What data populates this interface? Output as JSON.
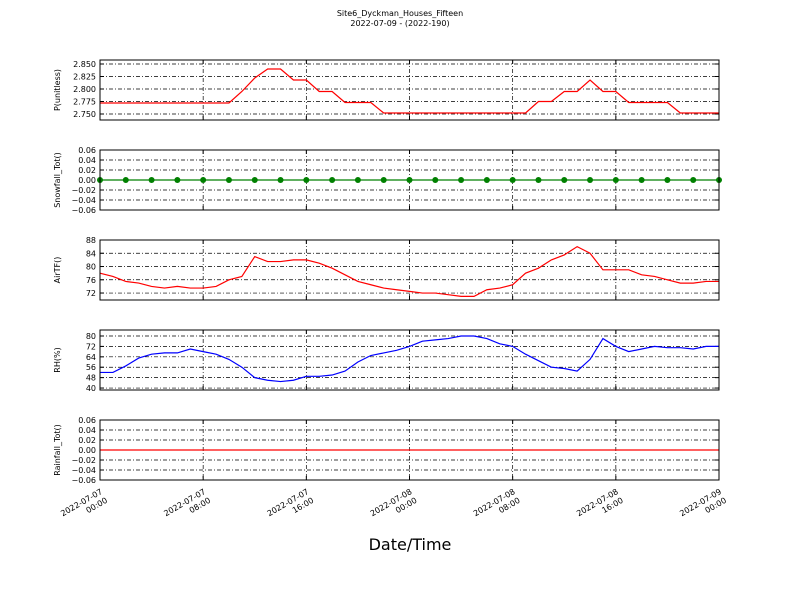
{
  "chart_data": [
    {
      "type": "line",
      "title": "Site6_Dyckman_Houses_Fifteen",
      "subtitle": "2022-07-09 - (2022-190)",
      "ylabel": "P(unitless)",
      "color": "#ff0000",
      "marker": false,
      "grid": true,
      "x": [
        "2022-07-07 00:00",
        "2022-07-07 01:00",
        "2022-07-07 02:00",
        "2022-07-07 03:00",
        "2022-07-07 04:00",
        "2022-07-07 05:00",
        "2022-07-07 06:00",
        "2022-07-07 07:00",
        "2022-07-07 08:00",
        "2022-07-07 09:00",
        "2022-07-07 10:00",
        "2022-07-07 11:00",
        "2022-07-07 12:00",
        "2022-07-07 13:00",
        "2022-07-07 14:00",
        "2022-07-07 15:00",
        "2022-07-07 16:00",
        "2022-07-07 17:00",
        "2022-07-07 18:00",
        "2022-07-07 19:00",
        "2022-07-07 20:00",
        "2022-07-07 21:00",
        "2022-07-07 22:00",
        "2022-07-07 23:00",
        "2022-07-08 00:00",
        "2022-07-08 01:00",
        "2022-07-08 02:00",
        "2022-07-08 03:00",
        "2022-07-08 04:00",
        "2022-07-08 05:00",
        "2022-07-08 06:00",
        "2022-07-08 07:00",
        "2022-07-08 08:00",
        "2022-07-08 09:00",
        "2022-07-08 10:00",
        "2022-07-08 11:00",
        "2022-07-08 12:00",
        "2022-07-08 13:00",
        "2022-07-08 14:00",
        "2022-07-08 15:00",
        "2022-07-08 16:00",
        "2022-07-08 17:00",
        "2022-07-08 18:00",
        "2022-07-08 19:00",
        "2022-07-08 20:00",
        "2022-07-08 21:00",
        "2022-07-08 22:00",
        "2022-07-08 23:00",
        "2022-07-09 00:00"
      ],
      "values": [
        2.772,
        2.772,
        2.772,
        2.772,
        2.772,
        2.772,
        2.772,
        2.772,
        2.772,
        2.772,
        2.772,
        2.795,
        2.822,
        2.84,
        2.84,
        2.818,
        2.818,
        2.795,
        2.795,
        2.773,
        2.773,
        2.773,
        2.752,
        2.752,
        2.752,
        2.752,
        2.752,
        2.752,
        2.752,
        2.752,
        2.752,
        2.752,
        2.752,
        2.752,
        2.775,
        2.775,
        2.795,
        2.795,
        2.818,
        2.795,
        2.795,
        2.773,
        2.773,
        2.773,
        2.773,
        2.752,
        2.752,
        2.752,
        2.752
      ],
      "xlim": [
        "2022-07-07 00:00",
        "2022-07-09 00:00"
      ],
      "xticks": [
        "2022-07-07 00:00",
        "2022-07-07 08:00",
        "2022-07-07 16:00",
        "2022-07-08 00:00",
        "2022-07-08 08:00",
        "2022-07-08 16:00",
        "2022-07-09 00:00"
      ],
      "ylim": [
        2.738,
        2.858
      ],
      "yticks": [
        {
          "value": 2.75,
          "label": "2.750"
        },
        {
          "value": 2.775,
          "label": "2.775"
        },
        {
          "value": 2.8,
          "label": "2.800"
        },
        {
          "value": 2.825,
          "label": "2.825"
        },
        {
          "value": 2.85,
          "label": "2.850"
        }
      ]
    },
    {
      "type": "line",
      "ylabel": "Snowfall_Tot()",
      "color": "#008000",
      "marker": true,
      "grid": true,
      "x": [
        "2022-07-07 00:00",
        "2022-07-07 02:00",
        "2022-07-07 04:00",
        "2022-07-07 06:00",
        "2022-07-07 08:00",
        "2022-07-07 10:00",
        "2022-07-07 12:00",
        "2022-07-07 14:00",
        "2022-07-07 16:00",
        "2022-07-07 18:00",
        "2022-07-07 20:00",
        "2022-07-07 22:00",
        "2022-07-08 00:00",
        "2022-07-08 02:00",
        "2022-07-08 04:00",
        "2022-07-08 06:00",
        "2022-07-08 08:00",
        "2022-07-08 10:00",
        "2022-07-08 12:00",
        "2022-07-08 14:00",
        "2022-07-08 16:00",
        "2022-07-08 18:00",
        "2022-07-08 20:00",
        "2022-07-08 22:00",
        "2022-07-09 00:00"
      ],
      "values": [
        0,
        0,
        0,
        0,
        0,
        0,
        0,
        0,
        0,
        0,
        0,
        0,
        0,
        0,
        0,
        0,
        0,
        0,
        0,
        0,
        0,
        0,
        0,
        0,
        0
      ],
      "xlim": [
        "2022-07-07 00:00",
        "2022-07-09 00:00"
      ],
      "xticks": [
        "2022-07-07 00:00",
        "2022-07-07 08:00",
        "2022-07-07 16:00",
        "2022-07-08 00:00",
        "2022-07-08 08:00",
        "2022-07-08 16:00",
        "2022-07-09 00:00"
      ],
      "ylim": [
        -0.06,
        0.06
      ],
      "yticks": [
        {
          "value": -0.06,
          "label": "−0.06"
        },
        {
          "value": -0.04,
          "label": "−0.04"
        },
        {
          "value": -0.02,
          "label": "−0.02"
        },
        {
          "value": 0,
          "label": "0.00"
        },
        {
          "value": 0.02,
          "label": "0.02"
        },
        {
          "value": 0.04,
          "label": "0.04"
        },
        {
          "value": 0.06,
          "label": "0.06"
        }
      ]
    },
    {
      "type": "line",
      "ylabel": "AirTF()",
      "color": "#ff0000",
      "marker": false,
      "grid": true,
      "x": [
        "2022-07-07 00:00",
        "2022-07-07 01:00",
        "2022-07-07 02:00",
        "2022-07-07 03:00",
        "2022-07-07 04:00",
        "2022-07-07 05:00",
        "2022-07-07 06:00",
        "2022-07-07 07:00",
        "2022-07-07 08:00",
        "2022-07-07 09:00",
        "2022-07-07 10:00",
        "2022-07-07 11:00",
        "2022-07-07 12:00",
        "2022-07-07 13:00",
        "2022-07-07 14:00",
        "2022-07-07 15:00",
        "2022-07-07 16:00",
        "2022-07-07 17:00",
        "2022-07-07 18:00",
        "2022-07-07 19:00",
        "2022-07-07 20:00",
        "2022-07-07 21:00",
        "2022-07-07 22:00",
        "2022-07-07 23:00",
        "2022-07-08 00:00",
        "2022-07-08 01:00",
        "2022-07-08 02:00",
        "2022-07-08 03:00",
        "2022-07-08 04:00",
        "2022-07-08 05:00",
        "2022-07-08 06:00",
        "2022-07-08 07:00",
        "2022-07-08 08:00",
        "2022-07-08 09:00",
        "2022-07-08 10:00",
        "2022-07-08 11:00",
        "2022-07-08 12:00",
        "2022-07-08 13:00",
        "2022-07-08 14:00",
        "2022-07-08 15:00",
        "2022-07-08 16:00",
        "2022-07-08 17:00",
        "2022-07-08 18:00",
        "2022-07-08 19:00",
        "2022-07-08 20:00",
        "2022-07-08 21:00",
        "2022-07-08 22:00",
        "2022-07-08 23:00",
        "2022-07-09 00:00"
      ],
      "values": [
        78,
        77,
        75.5,
        75,
        74,
        73.5,
        74,
        73.5,
        73.5,
        74,
        76,
        77,
        83,
        81.5,
        81.5,
        82,
        82,
        81,
        79.5,
        77.5,
        75.5,
        74.5,
        73.5,
        73,
        72.5,
        72,
        72,
        71.5,
        71,
        71,
        73,
        73.5,
        74.5,
        78,
        79.5,
        82,
        83.5,
        86,
        84,
        79,
        79,
        79,
        77.5,
        77,
        76,
        75,
        75,
        75.5,
        75.5
      ],
      "xlim": [
        "2022-07-07 00:00",
        "2022-07-09 00:00"
      ],
      "xticks": [
        "2022-07-07 00:00",
        "2022-07-07 08:00",
        "2022-07-07 16:00",
        "2022-07-08 00:00",
        "2022-07-08 08:00",
        "2022-07-08 16:00",
        "2022-07-09 00:00"
      ],
      "ylim": [
        69.9,
        88
      ],
      "yticks": [
        72,
        76,
        80,
        84,
        88
      ]
    },
    {
      "type": "line",
      "ylabel": "RH(%)",
      "color": "#0000ff",
      "marker": false,
      "grid": true,
      "x": [
        "2022-07-07 00:00",
        "2022-07-07 01:00",
        "2022-07-07 02:00",
        "2022-07-07 03:00",
        "2022-07-07 04:00",
        "2022-07-07 05:00",
        "2022-07-07 06:00",
        "2022-07-07 07:00",
        "2022-07-07 08:00",
        "2022-07-07 09:00",
        "2022-07-07 10:00",
        "2022-07-07 11:00",
        "2022-07-07 12:00",
        "2022-07-07 13:00",
        "2022-07-07 14:00",
        "2022-07-07 15:00",
        "2022-07-07 16:00",
        "2022-07-07 17:00",
        "2022-07-07 18:00",
        "2022-07-07 19:00",
        "2022-07-07 20:00",
        "2022-07-07 21:00",
        "2022-07-07 22:00",
        "2022-07-07 23:00",
        "2022-07-08 00:00",
        "2022-07-08 01:00",
        "2022-07-08 02:00",
        "2022-07-08 03:00",
        "2022-07-08 04:00",
        "2022-07-08 05:00",
        "2022-07-08 06:00",
        "2022-07-08 07:00",
        "2022-07-08 08:00",
        "2022-07-08 09:00",
        "2022-07-08 10:00",
        "2022-07-08 11:00",
        "2022-07-08 12:00",
        "2022-07-08 13:00",
        "2022-07-08 14:00",
        "2022-07-08 15:00",
        "2022-07-08 16:00",
        "2022-07-08 17:00",
        "2022-07-08 18:00",
        "2022-07-08 19:00",
        "2022-07-08 20:00",
        "2022-07-08 21:00",
        "2022-07-08 22:00",
        "2022-07-08 23:00",
        "2022-07-09 00:00"
      ],
      "values": [
        52,
        52,
        57,
        63,
        66,
        67,
        67,
        70,
        68,
        66,
        62,
        56,
        48,
        46,
        45,
        46,
        49,
        49,
        50,
        53,
        60,
        65,
        67,
        69,
        72,
        76,
        77,
        78,
        80,
        80,
        78,
        74,
        72,
        66,
        61,
        56,
        55,
        53,
        62,
        78,
        72,
        68,
        70,
        72,
        71,
        71,
        70,
        72,
        72
      ],
      "xlim": [
        "2022-07-07 00:00",
        "2022-07-09 00:00"
      ],
      "xticks": [
        "2022-07-07 00:00",
        "2022-07-07 08:00",
        "2022-07-07 16:00",
        "2022-07-08 00:00",
        "2022-07-08 08:00",
        "2022-07-08 16:00",
        "2022-07-09 00:00"
      ],
      "ylim": [
        38.5,
        84.6
      ],
      "yticks": [
        40,
        48,
        56,
        64,
        72,
        80
      ]
    },
    {
      "type": "line",
      "ylabel": "Rainfall_Tot()",
      "xlabel": "Date/Time",
      "color": "#ff0000",
      "marker": false,
      "grid": true,
      "x": [
        "2022-07-07 00:00",
        "2022-07-07 02:00",
        "2022-07-07 04:00",
        "2022-07-07 06:00",
        "2022-07-07 08:00",
        "2022-07-07 10:00",
        "2022-07-07 12:00",
        "2022-07-07 14:00",
        "2022-07-07 16:00",
        "2022-07-07 18:00",
        "2022-07-07 20:00",
        "2022-07-07 22:00",
        "2022-07-08 00:00",
        "2022-07-08 02:00",
        "2022-07-08 04:00",
        "2022-07-08 06:00",
        "2022-07-08 08:00",
        "2022-07-08 10:00",
        "2022-07-08 12:00",
        "2022-07-08 14:00",
        "2022-07-08 16:00",
        "2022-07-08 18:00",
        "2022-07-08 20:00",
        "2022-07-08 22:00",
        "2022-07-09 00:00"
      ],
      "values": [
        0,
        0,
        0,
        0,
        0,
        0,
        0,
        0,
        0,
        0,
        0,
        0,
        0,
        0,
        0,
        0,
        0,
        0,
        0,
        0,
        0,
        0,
        0,
        0,
        0
      ],
      "xlim": [
        "2022-07-07 00:00",
        "2022-07-09 00:00"
      ],
      "xticks": [
        {
          "value": "2022-07-07 00:00",
          "label": [
            "2022-07-07",
            "00:00"
          ]
        },
        {
          "value": "2022-07-07 08:00",
          "label": [
            "2022-07-07",
            "08:00"
          ]
        },
        {
          "value": "2022-07-07 16:00",
          "label": [
            "2022-07-07",
            "16:00"
          ]
        },
        {
          "value": "2022-07-08 00:00",
          "label": [
            "2022-07-08",
            "00:00"
          ]
        },
        {
          "value": "2022-07-08 08:00",
          "label": [
            "2022-07-08",
            "08:00"
          ]
        },
        {
          "value": "2022-07-08 16:00",
          "label": [
            "2022-07-08",
            "16:00"
          ]
        },
        {
          "value": "2022-07-09 00:00",
          "label": [
            "2022-07-09",
            "00:00"
          ]
        }
      ],
      "ylim": [
        -0.06,
        0.06
      ],
      "yticks": [
        {
          "value": -0.06,
          "label": "−0.06"
        },
        {
          "value": -0.04,
          "label": "−0.04"
        },
        {
          "value": -0.02,
          "label": "−0.02"
        },
        {
          "value": 0,
          "label": "0.00"
        },
        {
          "value": 0.02,
          "label": "0.02"
        },
        {
          "value": 0.04,
          "label": "0.04"
        },
        {
          "value": 0.06,
          "label": "0.06"
        }
      ]
    }
  ]
}
